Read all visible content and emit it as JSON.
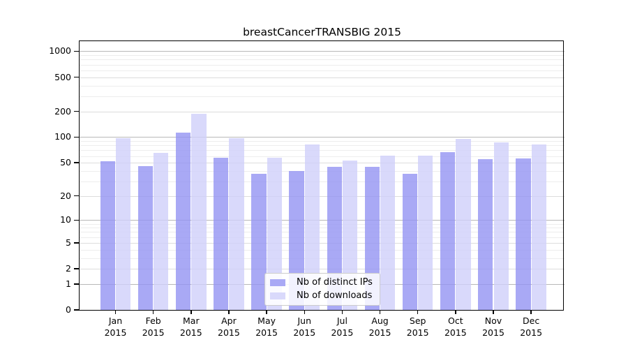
{
  "chart_data": {
    "type": "bar",
    "title": "breastCancerTRANSBIG 2015",
    "categories": [
      "Jan",
      "Feb",
      "Mar",
      "Apr",
      "May",
      "Jun",
      "Jul",
      "Aug",
      "Sep",
      "Oct",
      "Nov",
      "Dec"
    ],
    "category_year": "2015",
    "series": [
      {
        "name": "Nb of distinct IPs",
        "color": "#a9a9f5",
        "values": [
          52,
          46,
          114,
          57,
          37,
          40,
          45,
          45,
          37,
          66,
          55,
          56
        ]
      },
      {
        "name": "Nb of downloads",
        "color": "#d9d9fb",
        "values": [
          98,
          65,
          186,
          97,
          57,
          82,
          53,
          61,
          61,
          95,
          87,
          82
        ]
      }
    ],
    "y_axis": {
      "scale": "log10(value+1)",
      "ticks": [
        0,
        1,
        2,
        5,
        10,
        20,
        50,
        100,
        200,
        500,
        1000
      ],
      "minor_gridlines": [
        3,
        4,
        6,
        7,
        8,
        9,
        30,
        40,
        60,
        70,
        80,
        90,
        300,
        400,
        600,
        700,
        800,
        900
      ],
      "range": [
        0,
        1310
      ]
    },
    "x_axis": {
      "label_format": "month over year, two lines"
    },
    "legend": {
      "position": "lower center"
    },
    "grid": true,
    "colors": {
      "bar_alpha": 0.8,
      "decade_gridline": "#b8b8b8",
      "major_gridline": "#dcdcdc",
      "minor_gridline": "#ededed",
      "frame": "#000000",
      "background": "#ffffff"
    }
  }
}
